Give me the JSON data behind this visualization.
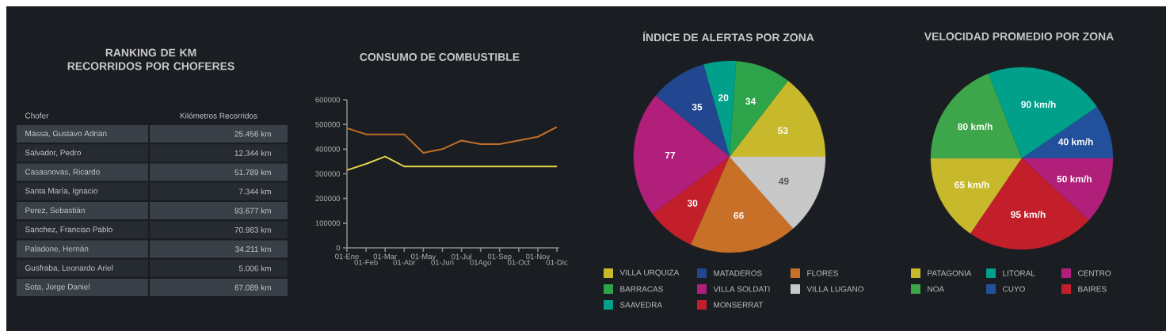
{
  "chart_data": [
    {
      "type": "other",
      "title": "RANKING DE KM RECORRIDOS POR CHOFERES",
      "annotations": [
        "Chofer",
        "Kilómetros Recorridos",
        "Massa, Gustavo Adrian",
        "25.456 km",
        "Salvador, Pedro",
        "12.344 km",
        "Casasnovas, Ricardo",
        "51.789 km",
        "Santa María, Ignacio",
        "7.344 km",
        "Perez, Sebastián",
        "93.677 km",
        "Sanchez, Franciso Pablo",
        "70.983 km",
        "Paladone, Hernán",
        "34.211 km",
        "Gusfraba, Leonardo Ariel",
        "5.006 km",
        "Sota, Jorge Daniel",
        "67.089 km"
      ]
    },
    {
      "type": "line",
      "title": "CONSUMO DE COMBUSTIBLE",
      "categories": [
        "01-Ene",
        "01-Feb",
        "01-Mar",
        "01-Abr",
        "01-May",
        "01-Jun",
        "01-Jul",
        "01Ago",
        "01-Sep",
        "01-Oct",
        "01-Nov",
        "01-Dic"
      ],
      "series": [
        {
          "color": "#c0702a",
          "values": [
            485000,
            460000,
            460000,
            460000,
            385000,
            400000,
            435000,
            420000,
            420000,
            435000,
            450000,
            490000
          ]
        },
        {
          "color": "#e8d44a",
          "values": [
            315000,
            340000,
            370000,
            330000,
            330000,
            330000,
            330000,
            330000,
            330000,
            330000,
            330000,
            330000
          ]
        }
      ],
      "ylim": [
        0,
        600000
      ],
      "yticks": [
        0,
        100000,
        200000,
        300000,
        400000,
        500000,
        600000
      ]
    },
    {
      "type": "pie",
      "title": "ÍNDICE DE ALERTAS POR ZONA",
      "categories": [
        "VILLA URQUIZA",
        "BARRACAS",
        "SAAVEDRA",
        "MATADEROS",
        "VILLA SOLDATI",
        "MONSERRAT",
        "FLORES",
        "VILLA LUGANO"
      ],
      "values": [
        53,
        34,
        20,
        35,
        77,
        30,
        66,
        49
      ],
      "colors": [
        "#c8b92c",
        "#2ea44a",
        "#00a08a",
        "#22468f",
        "#b01f7a",
        "#c21f2a",
        "#c87028",
        "#c8c8c8"
      ],
      "data_labels": true,
      "legend": "bottom"
    },
    {
      "type": "pie",
      "title": "VELOCIDAD  PROMEDIO POR ZONA",
      "categories": [
        "PATAGONIA",
        "NOA",
        "LITORAL",
        "CUYO",
        "CENTRO",
        "BAIRES"
      ],
      "values": [
        65,
        80,
        90,
        40,
        50,
        95
      ],
      "value_labels": [
        "65 km/h",
        "80 km/h",
        "90 km/h",
        "40 km/h",
        "50 km/h",
        "95 km/h"
      ],
      "colors": [
        "#c8b92c",
        "#3ea64a",
        "#00a08a",
        "#22509a",
        "#b01f7a",
        "#c21f2a"
      ],
      "legend": "bottom"
    }
  ]
}
